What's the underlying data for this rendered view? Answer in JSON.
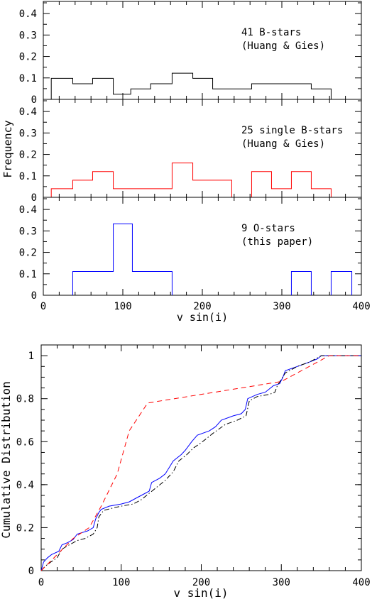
{
  "chart_data": [
    {
      "type": "histogram",
      "panels": [
        {
          "series_name": "41 B-stars",
          "label_lines": [
            "41 B-stars",
            "(Huang & Gies)"
          ],
          "color": "#000000",
          "bins": [
            [
              10,
              37,
              0.098
            ],
            [
              37,
              62,
              0.073
            ],
            [
              62,
              88,
              0.098
            ],
            [
              88,
              110,
              0.024
            ],
            [
              110,
              135,
              0.049
            ],
            [
              135,
              162,
              0.073
            ],
            [
              162,
              188,
              0.122
            ],
            [
              188,
              213,
              0.098
            ],
            [
              213,
              262,
              0.049
            ],
            [
              262,
              337,
              0.073
            ],
            [
              337,
              362,
              0.049
            ]
          ]
        },
        {
          "series_name": "25 single B-stars",
          "label_lines": [
            "25 single B-stars",
            "(Huang & Gies)"
          ],
          "color": "#ff0000",
          "bins": [
            [
              10,
              37,
              0.04
            ],
            [
              37,
              62,
              0.08
            ],
            [
              62,
              88,
              0.12
            ],
            [
              88,
              162,
              0.04
            ],
            [
              162,
              188,
              0.16
            ],
            [
              188,
              237,
              0.08
            ],
            [
              262,
              287,
              0.12
            ],
            [
              287,
              312,
              0.04
            ],
            [
              312,
              337,
              0.12
            ],
            [
              337,
              362,
              0.04
            ]
          ]
        },
        {
          "series_name": "9 O-stars",
          "label_lines": [
            "9 O-stars",
            "(this paper)"
          ],
          "color": "#0000ff",
          "bins": [
            [
              37,
              88,
              0.111
            ],
            [
              88,
              112,
              0.333
            ],
            [
              112,
              162,
              0.111
            ],
            [
              312,
              337,
              0.111
            ],
            [
              362,
              388,
              0.111
            ]
          ]
        }
      ],
      "xlim": [
        0,
        400
      ],
      "ylim": [
        0,
        0.45
      ],
      "xticks": [
        "0",
        "100",
        "200",
        "300",
        "400"
      ],
      "yticks": [
        "0",
        "0.1",
        "0.2",
        "0.3",
        "0.4"
      ],
      "xlabel": "v sin(i)",
      "ylabel": "Frequency"
    },
    {
      "type": "line",
      "xlim": [
        0,
        400
      ],
      "ylim": [
        0,
        1.05
      ],
      "xticks": [
        "0",
        "100",
        "200",
        "300",
        "400"
      ],
      "yticks": [
        "0",
        "0.2",
        "0.4",
        "0.6",
        "0.8",
        "1"
      ],
      "xlabel": "v sin(i)",
      "ylabel": "Cumulative Distribution",
      "series": [
        {
          "color": "#0000ff",
          "dash": "solid",
          "points": [
            [
              0,
              0
            ],
            [
              3,
              0.04
            ],
            [
              8,
              0.06
            ],
            [
              13,
              0.075
            ],
            [
              22,
              0.09
            ],
            [
              26,
              0.12
            ],
            [
              33,
              0.13
            ],
            [
              40,
              0.145
            ],
            [
              45,
              0.17
            ],
            [
              58,
              0.185
            ],
            [
              65,
              0.2
            ],
            [
              68,
              0.24
            ],
            [
              72,
              0.27
            ],
            [
              75,
              0.285
            ],
            [
              85,
              0.3
            ],
            [
              100,
              0.31
            ],
            [
              110,
              0.32
            ],
            [
              120,
              0.34
            ],
            [
              130,
              0.36
            ],
            [
              135,
              0.37
            ],
            [
              138,
              0.41
            ],
            [
              148,
              0.43
            ],
            [
              155,
              0.45
            ],
            [
              160,
              0.48
            ],
            [
              165,
              0.51
            ],
            [
              175,
              0.54
            ],
            [
              180,
              0.56
            ],
            [
              188,
              0.6
            ],
            [
              195,
              0.63
            ],
            [
              210,
              0.65
            ],
            [
              218,
              0.67
            ],
            [
              225,
              0.7
            ],
            [
              240,
              0.72
            ],
            [
              250,
              0.73
            ],
            [
              255,
              0.75
            ],
            [
              258,
              0.8
            ],
            [
              270,
              0.82
            ],
            [
              280,
              0.83
            ],
            [
              290,
              0.86
            ],
            [
              298,
              0.87
            ],
            [
              302,
              0.9
            ],
            [
              305,
              0.93
            ],
            [
              320,
              0.95
            ],
            [
              335,
              0.97
            ],
            [
              345,
              0.985
            ],
            [
              350,
              1
            ],
            [
              400,
              1
            ]
          ]
        },
        {
          "color": "#000000",
          "dash": "dashdot",
          "points": [
            [
              0,
              0
            ],
            [
              5,
              0.02
            ],
            [
              12,
              0.04
            ],
            [
              20,
              0.06
            ],
            [
              26,
              0.1
            ],
            [
              35,
              0.12
            ],
            [
              45,
              0.14
            ],
            [
              55,
              0.15
            ],
            [
              65,
              0.17
            ],
            [
              70,
              0.2
            ],
            [
              72,
              0.25
            ],
            [
              78,
              0.28
            ],
            [
              88,
              0.29
            ],
            [
              100,
              0.3
            ],
            [
              115,
              0.31
            ],
            [
              125,
              0.33
            ],
            [
              135,
              0.36
            ],
            [
              145,
              0.39
            ],
            [
              155,
              0.42
            ],
            [
              165,
              0.46
            ],
            [
              172,
              0.51
            ],
            [
              182,
              0.54
            ],
            [
              190,
              0.57
            ],
            [
              198,
              0.59
            ],
            [
              205,
              0.61
            ],
            [
              215,
              0.64
            ],
            [
              230,
              0.68
            ],
            [
              245,
              0.7
            ],
            [
              256,
              0.72
            ],
            [
              260,
              0.79
            ],
            [
              270,
              0.81
            ],
            [
              285,
              0.82
            ],
            [
              292,
              0.83
            ],
            [
              295,
              0.86
            ],
            [
              305,
              0.92
            ],
            [
              320,
              0.95
            ],
            [
              335,
              0.97
            ],
            [
              345,
              0.99
            ],
            [
              350,
              1
            ],
            [
              400,
              1
            ]
          ]
        },
        {
          "color": "#ff0000",
          "dash": "dashed",
          "points": [
            [
              0,
              0
            ],
            [
              40,
              0.15
            ],
            [
              60,
              0.2
            ],
            [
              75,
              0.3
            ],
            [
              95,
              0.45
            ],
            [
              110,
              0.65
            ],
            [
              133,
              0.78
            ],
            [
              300,
              0.88
            ],
            [
              360,
              1
            ],
            [
              400,
              1
            ]
          ]
        }
      ]
    }
  ]
}
